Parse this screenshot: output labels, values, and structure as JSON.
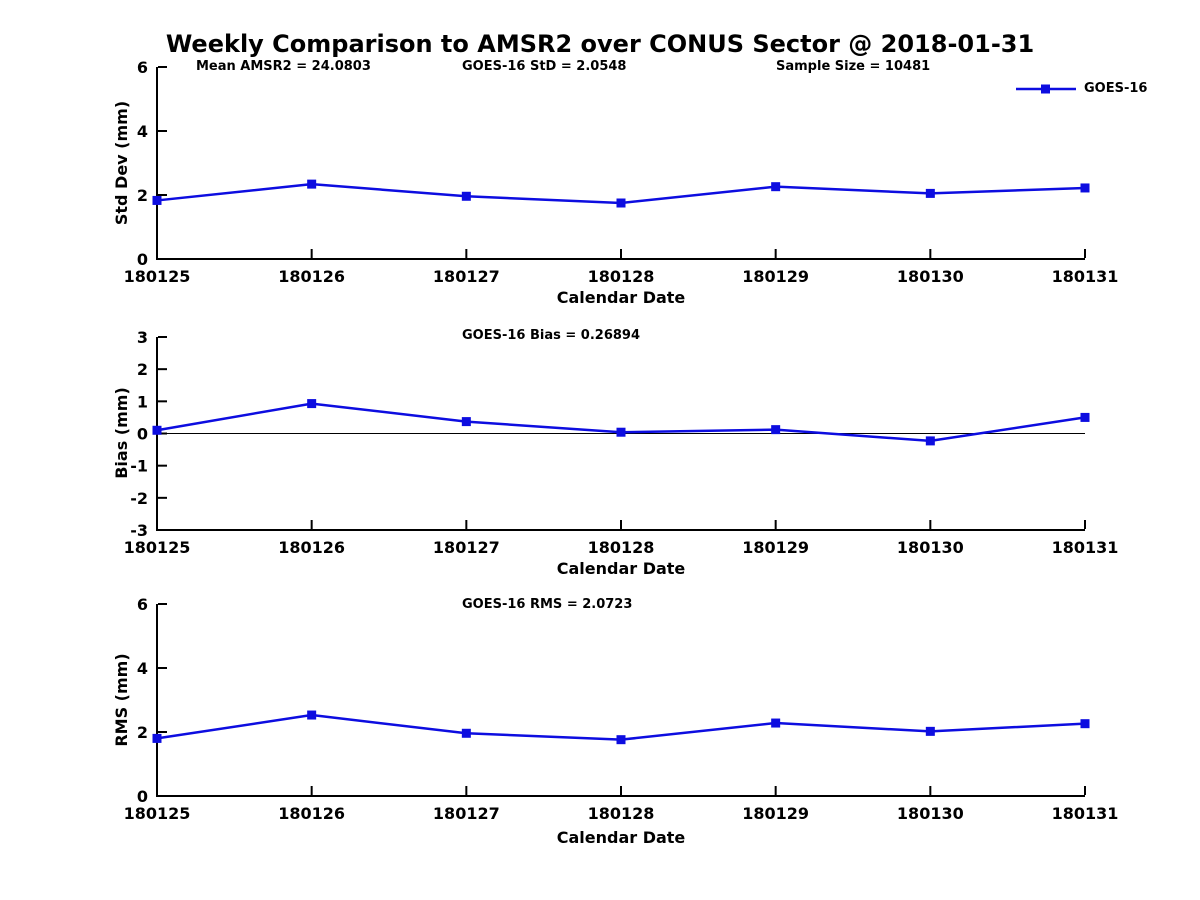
{
  "figure_title": "Weekly Comparison to AMSR2 over CONUS Sector @ 2018-01-31",
  "legend": {
    "label": "GOES-16",
    "position": "top-right",
    "box": false
  },
  "colors": {
    "line": "#0d0de0",
    "axis": "#000000",
    "text": "#000000",
    "zero_line": "#000000"
  },
  "chart_data": [
    {
      "type": "line",
      "title": "",
      "annotations": [
        "Mean AMSR2 = 24.0803",
        "GOES-16 StD = 2.0548",
        "Sample Size = 10481"
      ],
      "xlabel": "Calendar Date",
      "ylabel": "Std Dev (mm)",
      "categories": [
        "180125",
        "180126",
        "180127",
        "180128",
        "180129",
        "180130",
        "180131"
      ],
      "series": [
        {
          "name": "GOES-16",
          "values": [
            1.83,
            2.34,
            1.96,
            1.75,
            2.26,
            2.05,
            2.22
          ]
        }
      ],
      "ylim": [
        0,
        6
      ],
      "yticks": [
        0,
        2,
        4,
        6
      ],
      "grid": false,
      "zero_line": false,
      "marker": "square"
    },
    {
      "type": "line",
      "title": "GOES-16 Bias  = 0.26894",
      "annotations": [],
      "xlabel": "Calendar Date",
      "ylabel": "Bias (mm)",
      "categories": [
        "180125",
        "180126",
        "180127",
        "180128",
        "180129",
        "180130",
        "180131"
      ],
      "series": [
        {
          "name": "GOES-16",
          "values": [
            0.1,
            0.93,
            0.37,
            0.04,
            0.12,
            -0.23,
            0.5
          ]
        }
      ],
      "ylim": [
        -3,
        3
      ],
      "yticks": [
        -3,
        -2,
        -1,
        0,
        1,
        2,
        3
      ],
      "grid": false,
      "zero_line": true,
      "marker": "square"
    },
    {
      "type": "line",
      "title": "GOES-16 RMS = 2.0723",
      "annotations": [],
      "xlabel": "Calendar Date",
      "ylabel": "RMS (mm)",
      "categories": [
        "180125",
        "180126",
        "180127",
        "180128",
        "180129",
        "180130",
        "180131"
      ],
      "series": [
        {
          "name": "GOES-16",
          "values": [
            1.8,
            2.53,
            1.96,
            1.76,
            2.28,
            2.02,
            2.26
          ]
        }
      ],
      "ylim": [
        0,
        6
      ],
      "yticks": [
        0,
        2,
        4,
        6
      ],
      "grid": false,
      "zero_line": false,
      "marker": "square"
    }
  ]
}
